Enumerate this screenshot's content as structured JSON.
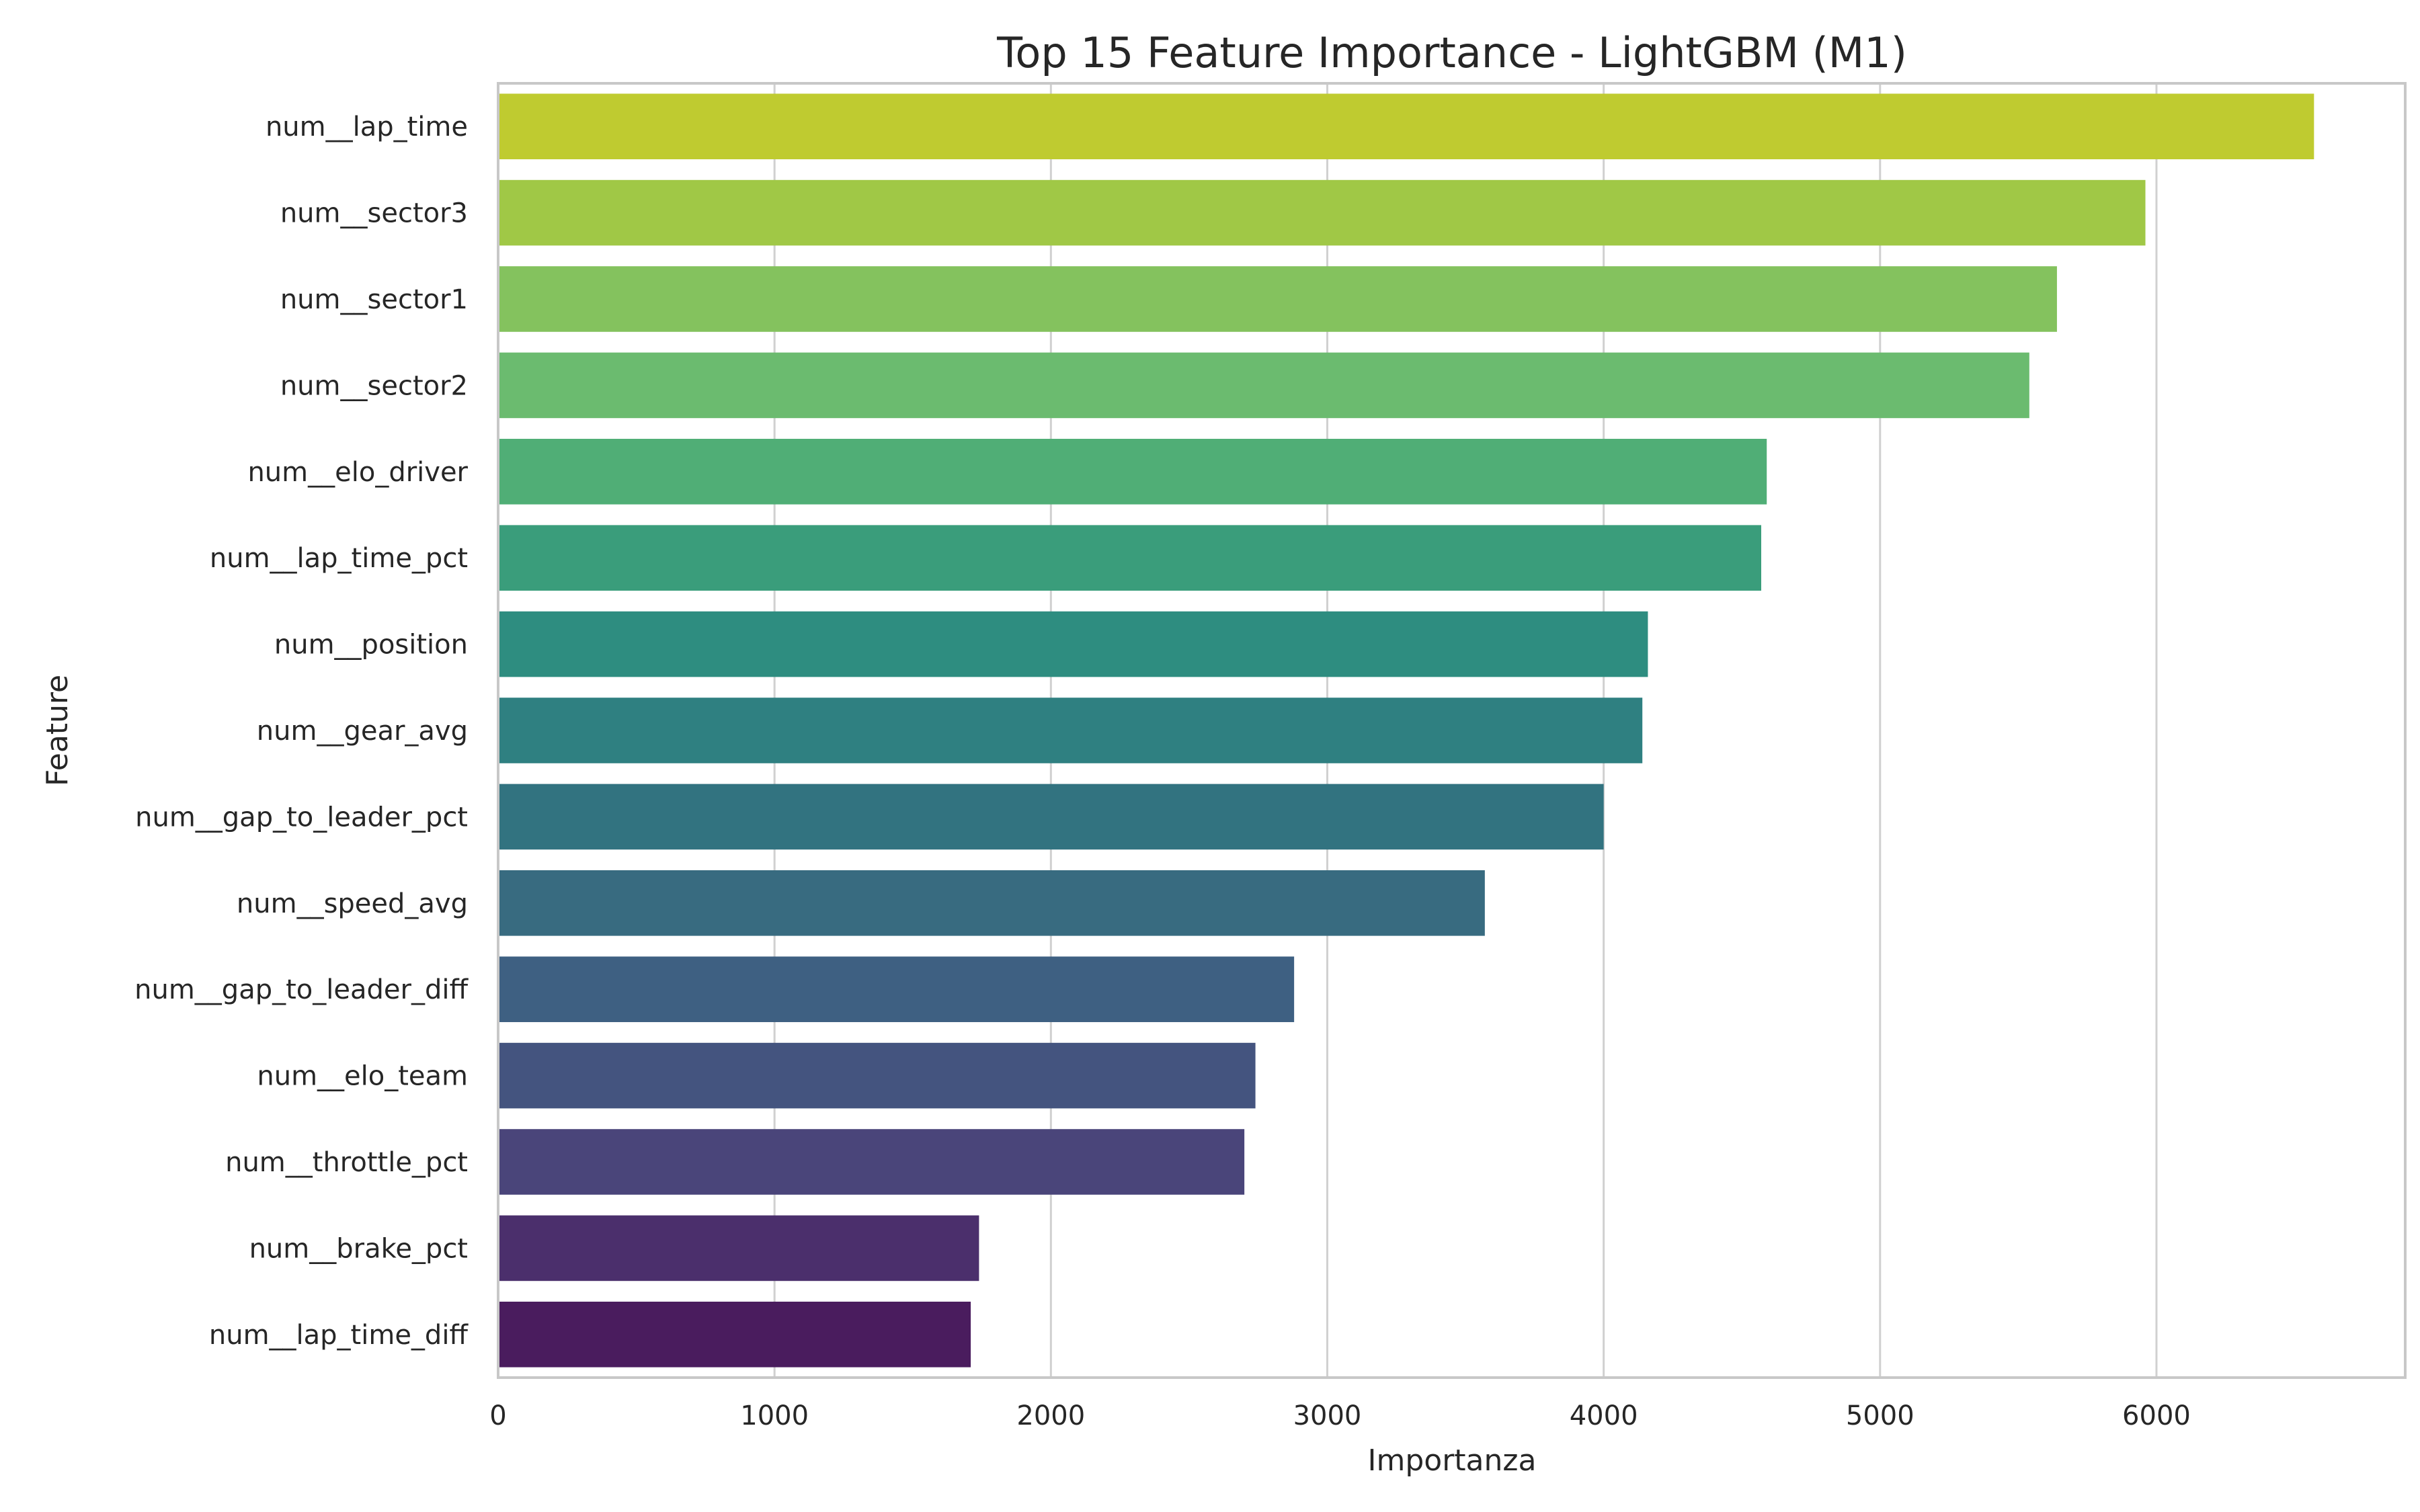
{
  "chart_data": {
    "type": "bar",
    "orientation": "horizontal",
    "title": "Top 15 Feature Importance - LightGBM (M1)",
    "xlabel": "Importanza",
    "ylabel": "Feature",
    "xlim": [
      0,
      6900
    ],
    "xticks": [
      0,
      1000,
      2000,
      3000,
      4000,
      5000,
      6000
    ],
    "xtick_labels": [
      "0",
      "1000",
      "2000",
      "3000",
      "4000",
      "5000",
      "6000"
    ],
    "grid": true,
    "colormap": "viridis",
    "categories": [
      "num__lap_time",
      "num__sector3",
      "num__sector1",
      "num__sector2",
      "num__elo_driver",
      "num__lap_time_pct",
      "num__position",
      "num__gear_avg",
      "num__gap_to_leader_pct",
      "num__speed_avg",
      "num__gap_to_leader_diff",
      "num__elo_team",
      "num__throttle_pct",
      "num__brake_pct",
      "num__lap_time_diff"
    ],
    "values": [
      6570,
      5960,
      5640,
      5540,
      4590,
      4570,
      4160,
      4140,
      4000,
      3570,
      2880,
      2740,
      2700,
      1740,
      1710
    ],
    "colors": [
      "#bfcb30",
      "#a0c846",
      "#84c25e",
      "#6bbb6f",
      "#50ae76",
      "#3a9d7b",
      "#2e8d80",
      "#2f8081",
      "#327380",
      "#386b80",
      "#3e6082",
      "#44547f",
      "#4a457a",
      "#4b2f6c",
      "#4a1c5e"
    ]
  }
}
